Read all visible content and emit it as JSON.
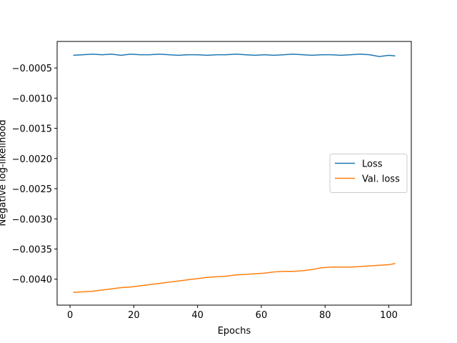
{
  "chart_data": {
    "type": "line",
    "xlabel": "Epochs",
    "ylabel": "Negative log-likelihood",
    "x": [
      1,
      4,
      7,
      10,
      13,
      16,
      19,
      22,
      25,
      28,
      31,
      34,
      37,
      40,
      43,
      46,
      49,
      52,
      55,
      58,
      61,
      64,
      67,
      70,
      73,
      76,
      79,
      82,
      85,
      88,
      91,
      94,
      97,
      100,
      102
    ],
    "series": [
      {
        "name": "Loss",
        "color": "#1f77b4",
        "values": [
          -0.00029,
          -0.00028,
          -0.00027,
          -0.00028,
          -0.00027,
          -0.00029,
          -0.00027,
          -0.00028,
          -0.00028,
          -0.00027,
          -0.00028,
          -0.00029,
          -0.00028,
          -0.00028,
          -0.00029,
          -0.00028,
          -0.00028,
          -0.00027,
          -0.00028,
          -0.00029,
          -0.00028,
          -0.00029,
          -0.00028,
          -0.00027,
          -0.00028,
          -0.00029,
          -0.00028,
          -0.00028,
          -0.00029,
          -0.00028,
          -0.00027,
          -0.00028,
          -0.00031,
          -0.00029,
          -0.0003
        ]
      },
      {
        "name": "Val. loss",
        "color": "#ff7f0e",
        "values": [
          -0.00422,
          -0.00421,
          -0.0042,
          -0.00418,
          -0.00416,
          -0.00414,
          -0.00413,
          -0.00411,
          -0.00409,
          -0.00407,
          -0.00405,
          -0.00403,
          -0.00401,
          -0.00399,
          -0.00397,
          -0.00396,
          -0.00395,
          -0.00393,
          -0.00392,
          -0.00391,
          -0.0039,
          -0.00388,
          -0.00387,
          -0.00387,
          -0.00386,
          -0.00384,
          -0.00381,
          -0.0038,
          -0.0038,
          -0.0038,
          -0.00379,
          -0.00378,
          -0.00377,
          -0.00376,
          -0.00374
        ]
      }
    ],
    "xlim": [
      -4.05,
      107.05
    ],
    "xticks": [
      0,
      20,
      40,
      60,
      80,
      100
    ],
    "ylim": [
      -0.00443,
      -6e-05
    ],
    "yticks": [
      {
        "value": -0.004,
        "label": "−0.0040"
      },
      {
        "value": -0.0035,
        "label": "−0.0035"
      },
      {
        "value": -0.003,
        "label": "−0.0030"
      },
      {
        "value": -0.0025,
        "label": "−0.0025"
      },
      {
        "value": -0.002,
        "label": "−0.0020"
      },
      {
        "value": -0.0015,
        "label": "−0.0015"
      },
      {
        "value": -0.001,
        "label": "−0.0010"
      },
      {
        "value": -0.0005,
        "label": "−0.0005"
      }
    ],
    "grid": false,
    "legend": "center right"
  }
}
